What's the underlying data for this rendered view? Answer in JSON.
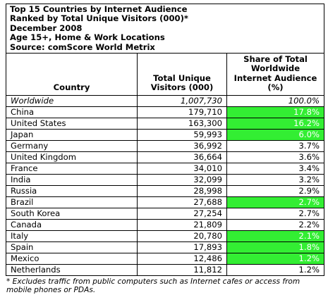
{
  "title_lines": [
    "Top 15 Countries by Internet Audience",
    "Ranked by Total Unique Visitors (000)*",
    "December 2008",
    "Age 15+, Home & Work Locations",
    "Source: comScore World Metrix"
  ],
  "columns": {
    "country": "Country",
    "visitors": "Total Unique Visitors (000)",
    "share": "Share of Total Worldwide Internet Audience (%)"
  },
  "highlight_color": "#33ee33",
  "rows": [
    {
      "country": "Worldwide",
      "visitors": "1,007,730",
      "share": "100.0%",
      "italic": true,
      "highlight": false
    },
    {
      "country": "China",
      "visitors": "179,710",
      "share": "17.8%",
      "highlight": true
    },
    {
      "country": "United States",
      "visitors": "163,300",
      "share": "16.2%",
      "highlight": true
    },
    {
      "country": "Japan",
      "visitors": "59,993",
      "share": "6.0%",
      "highlight": true
    },
    {
      "country": "Germany",
      "visitors": "36,992",
      "share": "3.7%",
      "highlight": false
    },
    {
      "country": "United Kingdom",
      "visitors": "36,664",
      "share": "3.6%",
      "highlight": false
    },
    {
      "country": "France",
      "visitors": "34,010",
      "share": "3.4%",
      "highlight": false
    },
    {
      "country": "India",
      "visitors": "32,099",
      "share": "3.2%",
      "highlight": false
    },
    {
      "country": "Russia",
      "visitors": "28,998",
      "share": "2.9%",
      "highlight": false
    },
    {
      "country": "Brazil",
      "visitors": "27,688",
      "share": "2.7%",
      "highlight": true
    },
    {
      "country": "South Korea",
      "visitors": "27,254",
      "share": "2.7%",
      "highlight": false
    },
    {
      "country": "Canada",
      "visitors": "21,809",
      "share": "2.2%",
      "highlight": false
    },
    {
      "country": "Italy",
      "visitors": "20,780",
      "share": "2.1%",
      "highlight": true
    },
    {
      "country": "Spain",
      "visitors": "17,893",
      "share": "1.8%",
      "highlight": true
    },
    {
      "country": "Mexico",
      "visitors": "12,486",
      "share": "1.2%",
      "highlight": true
    },
    {
      "country": "Netherlands",
      "visitors": "11,812",
      "share": "1.2%",
      "highlight": false
    }
  ],
  "footnote": "* Excludes traffic from public computers such as Internet cafes or access from mobile phones or PDAs."
}
